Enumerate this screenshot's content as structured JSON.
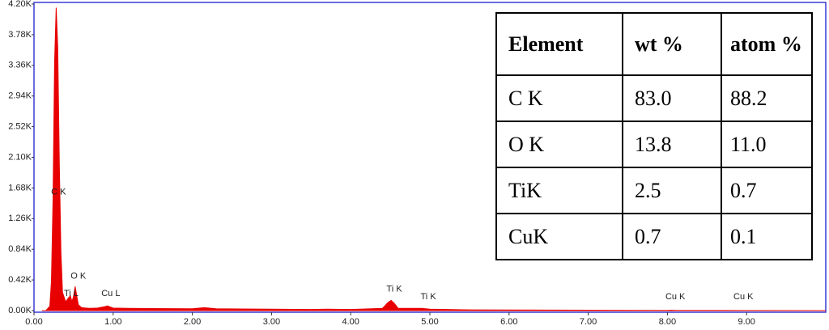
{
  "chart_data": {
    "type": "area",
    "x": [
      0.1,
      0.15,
      0.2,
      0.22,
      0.24,
      0.26,
      0.28,
      0.3,
      0.32,
      0.34,
      0.36,
      0.4,
      0.44,
      0.46,
      0.48,
      0.5,
      0.52,
      0.54,
      0.56,
      0.6,
      0.7,
      0.8,
      0.9,
      0.93,
      0.96,
      1.0,
      1.2,
      1.5,
      2.0,
      2.15,
      2.3,
      2.6,
      3.0,
      3.5,
      3.7,
      4.0,
      4.4,
      4.47,
      4.51,
      4.55,
      4.6,
      4.9,
      5.0,
      5.5,
      6.0,
      7.0,
      8.0,
      8.04,
      8.1,
      9.0,
      10.0
    ],
    "values": [
      0,
      0,
      60,
      400,
      1500,
      3400,
      4150,
      3600,
      2000,
      800,
      250,
      120,
      180,
      200,
      120,
      200,
      330,
      200,
      80,
      40,
      30,
      35,
      55,
      65,
      50,
      35,
      30,
      28,
      25,
      40,
      25,
      22,
      20,
      15,
      20,
      15,
      30,
      110,
      140,
      100,
      30,
      30,
      20,
      10,
      8,
      5,
      3,
      5,
      3,
      2,
      0
    ],
    "color": "#e80000",
    "xlim": [
      0,
      10
    ],
    "ylim": [
      0,
      4200
    ],
    "xticks": [
      {
        "value": 0,
        "label": "0.00"
      },
      {
        "value": 1,
        "label": "1.00"
      },
      {
        "value": 2,
        "label": "2.00"
      },
      {
        "value": 3,
        "label": "3.00"
      },
      {
        "value": 4,
        "label": "4.00"
      },
      {
        "value": 5,
        "label": "5.00"
      },
      {
        "value": 6,
        "label": "6.00"
      },
      {
        "value": 7,
        "label": "7.00"
      },
      {
        "value": 8,
        "label": "8.00"
      },
      {
        "value": 9,
        "label": "9.00"
      }
    ],
    "yticks": [
      {
        "value": 0,
        "label": "0.00K"
      },
      {
        "value": 420,
        "label": "0.42K"
      },
      {
        "value": 840,
        "label": "0.84K"
      },
      {
        "value": 1260,
        "label": "1.26K"
      },
      {
        "value": 1680,
        "label": "1.68K"
      },
      {
        "value": 2100,
        "label": "2.10K"
      },
      {
        "value": 2520,
        "label": "2.52K"
      },
      {
        "value": 2940,
        "label": "2.94K"
      },
      {
        "value": 3360,
        "label": "3.36K"
      },
      {
        "value": 3780,
        "label": "3.78K"
      },
      {
        "value": 4200,
        "label": "4.20K"
      }
    ],
    "annotations": [
      {
        "text": "C K",
        "x": 0.31,
        "y": 1620
      },
      {
        "text": "O K",
        "x": 0.56,
        "y": 470
      },
      {
        "text": "Ti L",
        "x": 0.47,
        "y": 230
      },
      {
        "text": "Cu L",
        "x": 0.97,
        "y": 230
      },
      {
        "text": "Ti K",
        "x": 4.55,
        "y": 290
      },
      {
        "text": "Ti K",
        "x": 4.98,
        "y": 185
      },
      {
        "text": "Cu K",
        "x": 8.1,
        "y": 185
      },
      {
        "text": "Cu K",
        "x": 8.96,
        "y": 185
      }
    ]
  },
  "table": {
    "columns": [
      "Element",
      "wt %",
      "atom %"
    ],
    "rows": [
      [
        "C K",
        "83.0",
        "88.2"
      ],
      [
        "O K",
        "13.8",
        "11.0"
      ],
      [
        "TiK",
        "2.5",
        "0.7"
      ],
      [
        "CuK",
        "0.7",
        "0.1"
      ]
    ]
  }
}
